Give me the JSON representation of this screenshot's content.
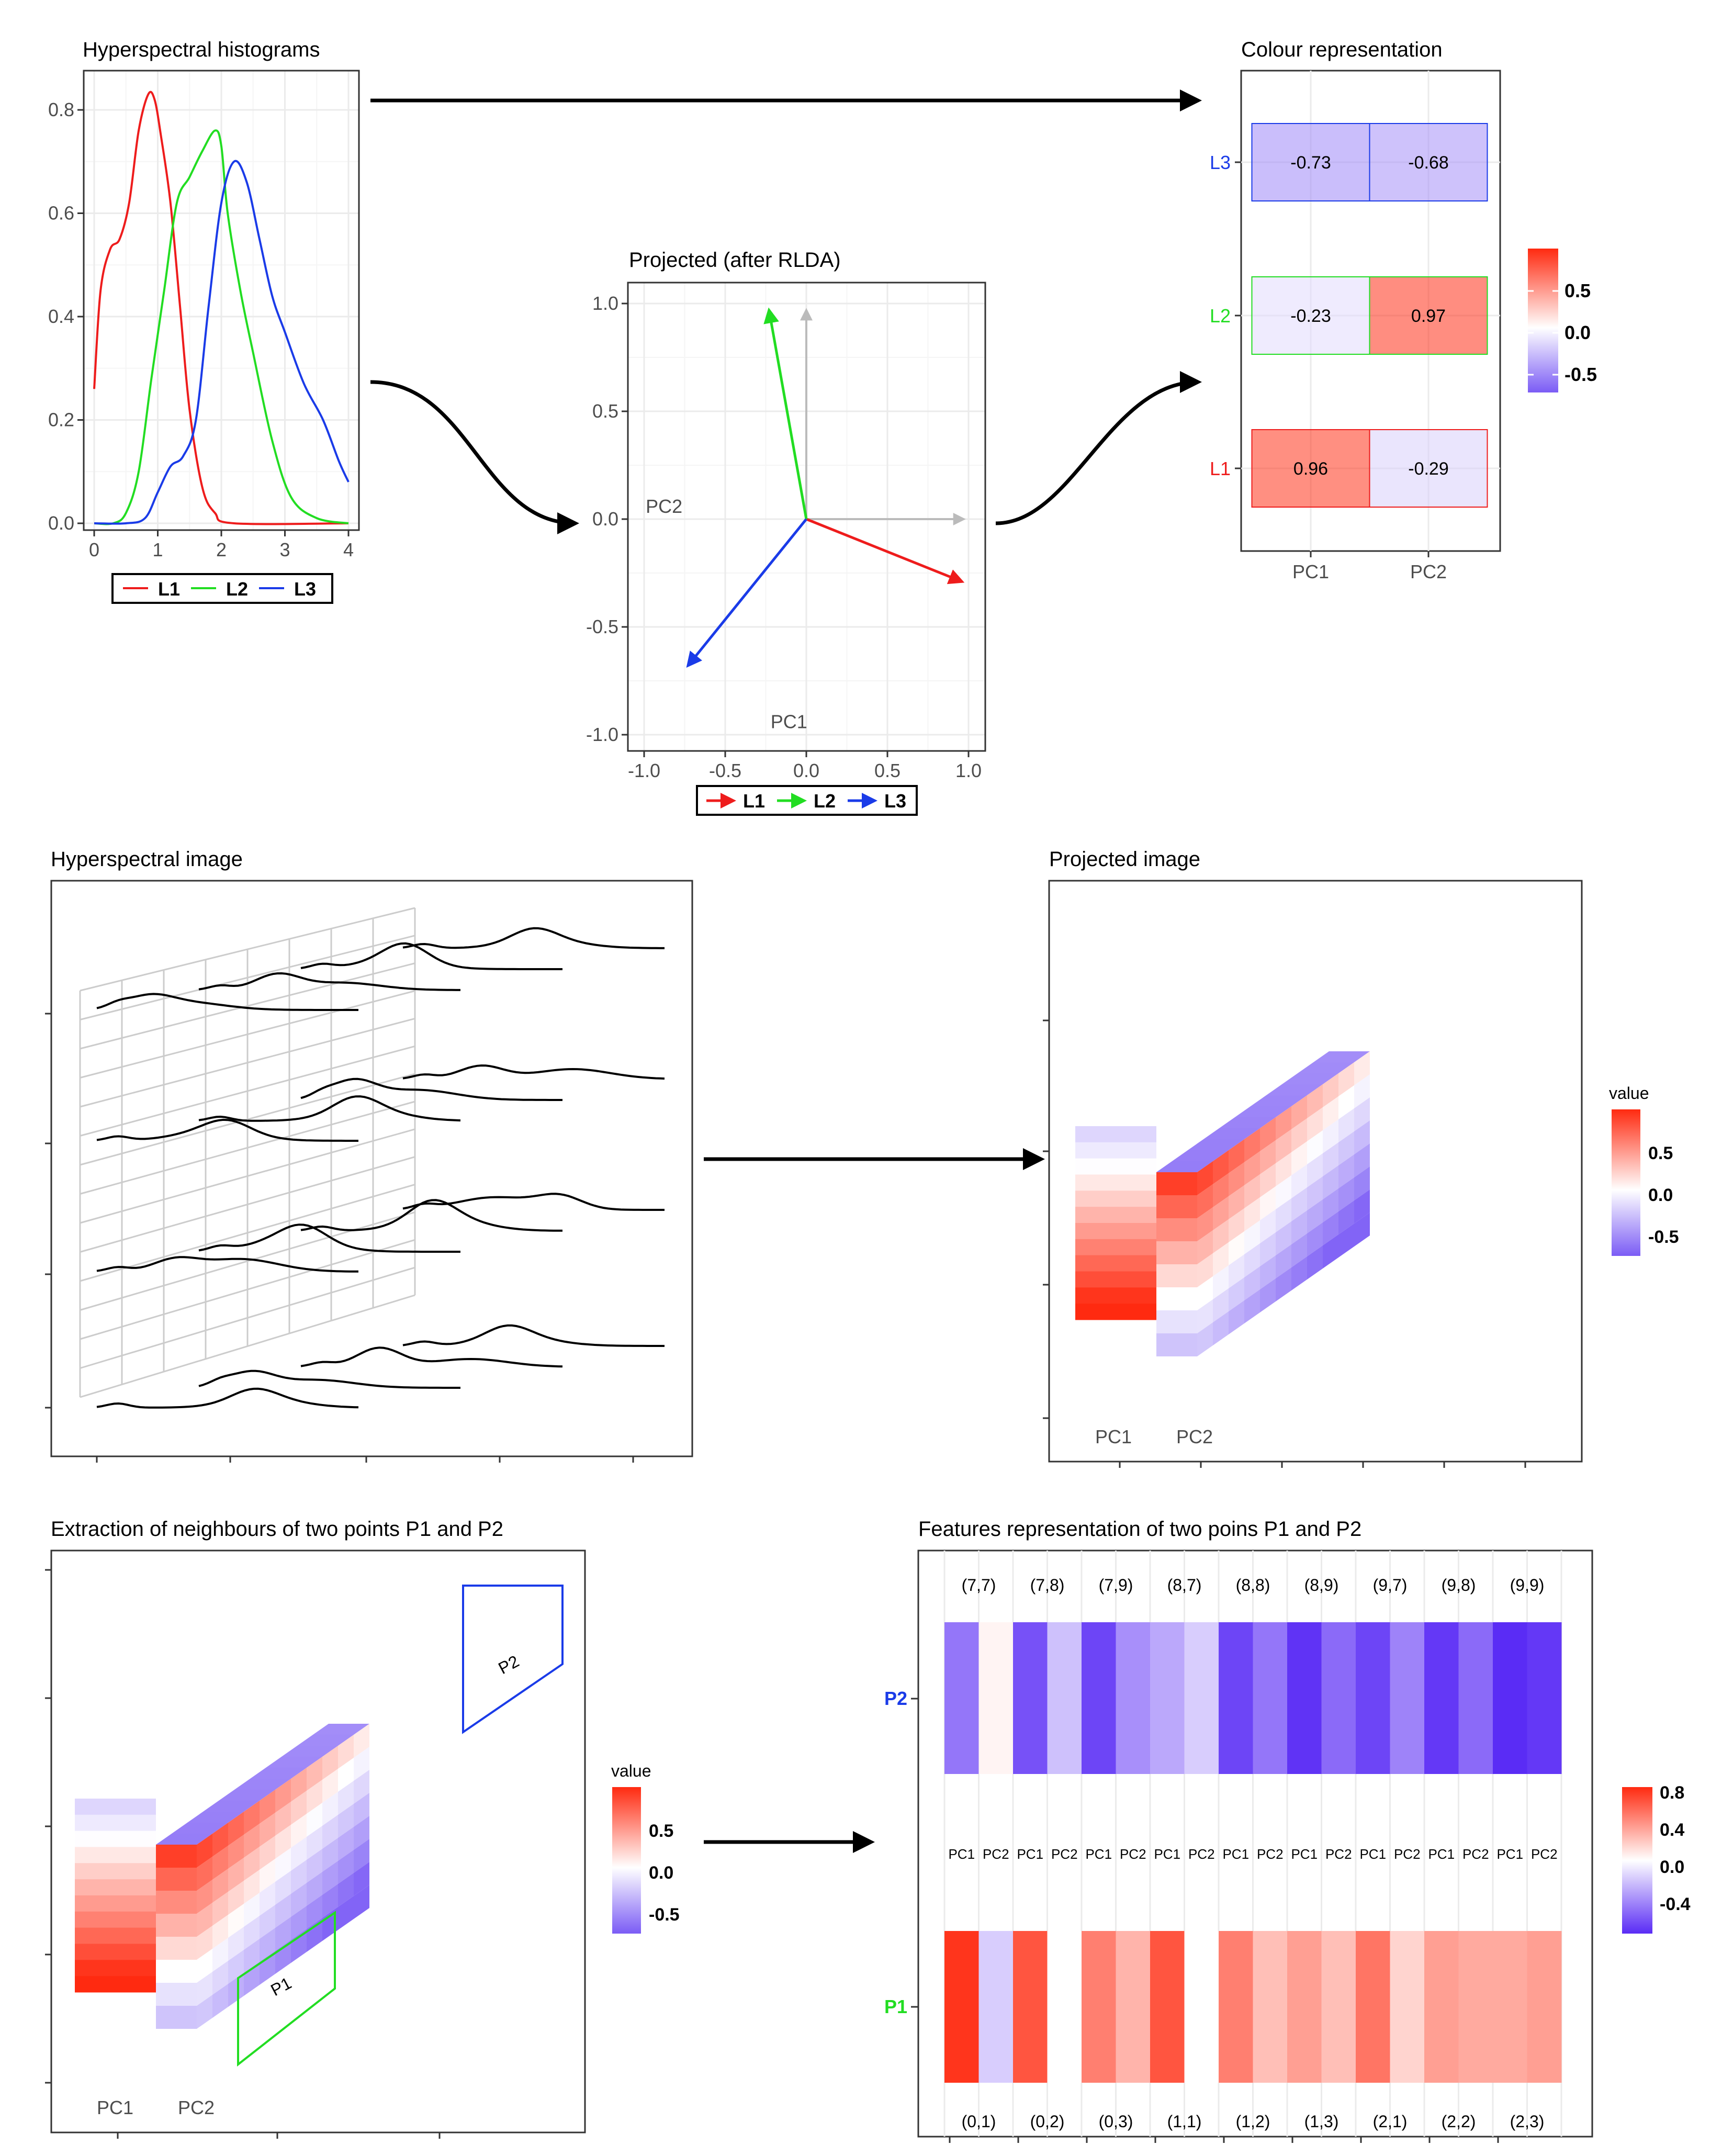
{
  "colors": {
    "l1": "#ee1c1c",
    "l2": "#22dd22",
    "l3": "#1a3be8",
    "low": "#7b5cf5",
    "mid": "#ffffff",
    "high": "#ff2a10"
  },
  "panels": {
    "hist_title": "Hyperspectral histograms",
    "proj_title": "Projected (after RLDA)",
    "colour_title": "Colour representation",
    "himage_title": "Hyperspectral image",
    "pimage_title": "Projected image",
    "extract_title": "Extraction of neighbours of two points P1 and P2",
    "features_title": "Features representation of two poins P1 and P2"
  },
  "legend": {
    "l1": "L1",
    "l2": "L2",
    "l3": "L3"
  },
  "axis": {
    "pc1": "PC1",
    "pc2": "PC2"
  },
  "heat": {
    "rows": [
      "L3",
      "L2",
      "L1"
    ],
    "cols": [
      "PC1",
      "PC2"
    ],
    "values": [
      [
        -0.73,
        -0.68
      ],
      [
        -0.23,
        0.97
      ],
      [
        0.96,
        -0.29
      ]
    ],
    "labels": [
      [
        "-0.73",
        "-0.68"
      ],
      [
        "-0.23",
        "0.97"
      ],
      [
        "0.96",
        "-0.29"
      ]
    ],
    "legend_ticks": [
      "0.5",
      "0.0",
      "-0.5"
    ]
  },
  "value_legend": {
    "title": "value",
    "ticks": [
      "0.5",
      "0.0",
      "-0.5"
    ]
  },
  "features": {
    "top_labels": [
      "(7,7)",
      "(7,8)",
      "(7,9)",
      "(8,7)",
      "(8,8)",
      "(8,9)",
      "(9,7)",
      "(9,8)",
      "(9,9)"
    ],
    "bottom_labels": [
      "(0,1)",
      "(0,2)",
      "(0,3)",
      "(1,1)",
      "(1,2)",
      "(1,3)",
      "(2,1)",
      "(2,2)",
      "(2,3)"
    ],
    "p1": "P1",
    "p2": "P2",
    "legend_ticks": [
      "0.8",
      "0.4",
      "0.0",
      "-0.4"
    ],
    "p2_values": [
      -0.55,
      0.05,
      -0.7,
      -0.25,
      -0.75,
      -0.45,
      -0.35,
      -0.2,
      -0.75,
      -0.55,
      -0.82,
      -0.6,
      -0.75,
      -0.5,
      -0.8,
      -0.6,
      -0.85,
      -0.8
    ],
    "p1_values": [
      0.95,
      -0.2,
      0.8,
      0.0,
      0.6,
      0.35,
      0.8,
      0.0,
      0.6,
      0.3,
      0.45,
      0.3,
      0.65,
      0.2,
      0.45,
      0.4,
      0.4,
      0.45
    ]
  },
  "chart_data": [
    {
      "type": "line",
      "title": "Hyperspectral histograms",
      "xlabel": "",
      "ylabel": "",
      "xlim": [
        0,
        4
      ],
      "ylim": [
        0,
        0.85
      ],
      "x_ticks": [
        "0",
        "1",
        "2",
        "3",
        "4"
      ],
      "y_ticks": [
        "0.0",
        "0.2",
        "0.4",
        "0.6",
        "0.8"
      ],
      "series": [
        {
          "name": "L1",
          "x": [
            0,
            0.1,
            0.25,
            0.4,
            0.55,
            0.7,
            0.85,
            0.95,
            1.05,
            1.2,
            1.35,
            1.5,
            1.7,
            1.9,
            2.2,
            4.0
          ],
          "y": [
            0.26,
            0.45,
            0.53,
            0.55,
            0.62,
            0.76,
            0.83,
            0.82,
            0.75,
            0.62,
            0.42,
            0.22,
            0.07,
            0.02,
            0.0,
            0.0
          ]
        },
        {
          "name": "L2",
          "x": [
            0,
            0.3,
            0.5,
            0.7,
            0.9,
            1.1,
            1.3,
            1.5,
            1.7,
            1.9,
            2.0,
            2.1,
            2.3,
            2.5,
            2.8,
            3.1,
            3.5,
            4.0
          ],
          "y": [
            0,
            0.0,
            0.02,
            0.1,
            0.28,
            0.45,
            0.62,
            0.67,
            0.72,
            0.76,
            0.73,
            0.6,
            0.45,
            0.33,
            0.16,
            0.05,
            0.01,
            0.0
          ]
        },
        {
          "name": "L3",
          "x": [
            0,
            0.5,
            0.8,
            1.0,
            1.2,
            1.4,
            1.6,
            1.8,
            2.0,
            2.2,
            2.4,
            2.6,
            2.8,
            3.0,
            3.3,
            3.6,
            3.85,
            4.0
          ],
          "y": [
            0,
            0.0,
            0.01,
            0.06,
            0.11,
            0.13,
            0.2,
            0.42,
            0.62,
            0.7,
            0.66,
            0.55,
            0.44,
            0.37,
            0.27,
            0.2,
            0.12,
            0.08
          ]
        }
      ]
    },
    {
      "type": "scatter",
      "title": "Projected (after RLDA)",
      "xlim": [
        -1.0,
        1.0
      ],
      "ylim": [
        -1.0,
        1.0
      ],
      "x_ticks": [
        "-1.0",
        "-0.5",
        "0.0",
        "0.5",
        "1.0"
      ],
      "y_ticks": [
        "1.0",
        "0.5",
        "0.0",
        "-0.5",
        "-1.0"
      ],
      "axis_labels": {
        "horizontal": "PC2",
        "vertical": "PC1"
      },
      "vectors": [
        {
          "name": "L1",
          "x": 0.96,
          "y": -0.29
        },
        {
          "name": "L2",
          "x": -0.23,
          "y": 0.97
        },
        {
          "name": "L3",
          "x": -0.73,
          "y": -0.68
        }
      ]
    }
  ]
}
